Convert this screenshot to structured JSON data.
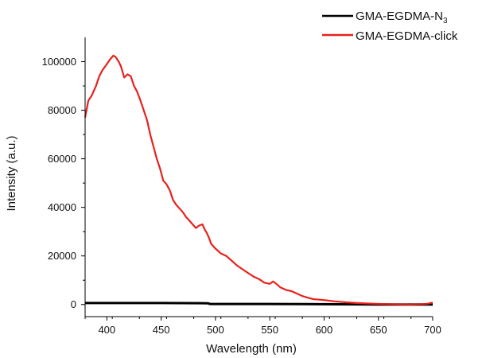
{
  "chart_data": {
    "type": "line",
    "xlabel": "Wavelength (nm)",
    "ylabel": "Intensity (a.u.)",
    "xlim": [
      380,
      700
    ],
    "ylim": [
      -5000,
      110000
    ],
    "x_ticks": [
      400,
      450,
      500,
      550,
      600,
      650,
      700
    ],
    "y_ticks": [
      0,
      20000,
      40000,
      60000,
      80000,
      100000
    ],
    "x_tick_labels": [
      "400",
      "450",
      "500",
      "550",
      "600",
      "650",
      "700"
    ],
    "y_tick_labels": [
      "0",
      "20000",
      "40000",
      "60000",
      "80000",
      "100000"
    ],
    "grid": false,
    "legend_position": "top-right",
    "series": [
      {
        "name_text": "GMA-EGDMA-N",
        "name_subscript": "3",
        "color": "#000000",
        "x": [
          380,
          400,
          450,
          493,
          495,
          550,
          600,
          650,
          700
        ],
        "y": [
          600,
          600,
          600,
          500,
          200,
          200,
          100,
          0,
          0
        ]
      },
      {
        "name": "GMA-EGDMA-click",
        "color": "#e8211b",
        "x": [
          380,
          383,
          386,
          390,
          393,
          396,
          400,
          403,
          406,
          408,
          411,
          413,
          416,
          419,
          422,
          425,
          428,
          431,
          434,
          437,
          440,
          443,
          446,
          449,
          452,
          455,
          458,
          461,
          464,
          467,
          470,
          473,
          476,
          479,
          482,
          485,
          488,
          490,
          492,
          494,
          496,
          500,
          505,
          510,
          515,
          520,
          525,
          530,
          535,
          540,
          545,
          550,
          553,
          556,
          560,
          565,
          570,
          575,
          580,
          585,
          590,
          600,
          610,
          620,
          630,
          640,
          650,
          660,
          670,
          680,
          690,
          695,
          700
        ],
        "y": [
          77000,
          84000,
          86000,
          90000,
          94000,
          96500,
          99000,
          101000,
          102500,
          102000,
          100000,
          98000,
          93500,
          94800,
          94000,
          90000,
          87500,
          84000,
          80000,
          76000,
          70000,
          65000,
          60000,
          56000,
          51000,
          49500,
          47000,
          43000,
          41000,
          39500,
          38000,
          36000,
          34500,
          33000,
          31500,
          32500,
          33000,
          31000,
          29500,
          27500,
          25000,
          23000,
          21000,
          20000,
          18000,
          16000,
          14500,
          13000,
          11500,
          10500,
          9000,
          8500,
          9500,
          8500,
          7000,
          6000,
          5500,
          4500,
          3500,
          2800,
          2200,
          1800,
          1300,
          900,
          600,
          400,
          250,
          150,
          50,
          0,
          150,
          300,
          800
        ]
      }
    ]
  }
}
